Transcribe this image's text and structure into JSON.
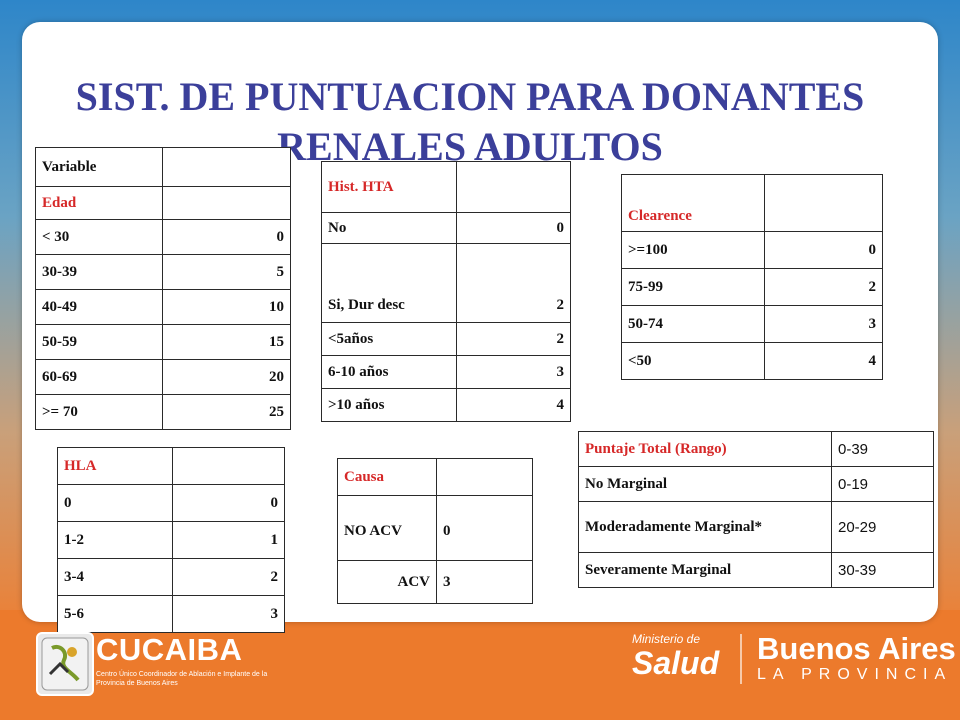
{
  "title": {
    "line1": "SIST. DE PUNTUACION PARA DONANTES",
    "line2": "RENALES ADULTOS"
  },
  "edad_table": {
    "header": "Variable",
    "subheader": "Edad",
    "rows": [
      {
        "label": "< 30",
        "value": "0"
      },
      {
        "label": "30-39",
        "value": "5"
      },
      {
        "label": "40-49",
        "value": "10"
      },
      {
        "label": "50-59",
        "value": "15"
      },
      {
        "label": "60-69",
        "value": "20"
      },
      {
        "label": ">= 70",
        "value": "25"
      }
    ]
  },
  "hta_table": {
    "header": "Hist. HTA",
    "rows": [
      {
        "label": "No",
        "value": "0"
      },
      {
        "label": "Si, Dur desc",
        "value": "2"
      },
      {
        "label": "<5años",
        "value": "2"
      },
      {
        "label": "6-10 años",
        "value": "3"
      },
      {
        "label": ">10 años",
        "value": "4"
      }
    ]
  },
  "clearence_table": {
    "header": "Clearence",
    "rows": [
      {
        "label": ">=100",
        "value": "0"
      },
      {
        "label": "75-99",
        "value": "2"
      },
      {
        "label": "50-74",
        "value": "3"
      },
      {
        "label": "<50",
        "value": "4"
      }
    ]
  },
  "hla_table": {
    "header": "HLA",
    "rows": [
      {
        "label": "0",
        "value": "0"
      },
      {
        "label": "1-2",
        "value": "1"
      },
      {
        "label": "3-4",
        "value": "2"
      },
      {
        "label": "5-6",
        "value": "3"
      }
    ]
  },
  "causa_table": {
    "header": "Causa",
    "rows": [
      {
        "label": "NO ACV",
        "value": "0"
      },
      {
        "label": "ACV",
        "value": "3"
      }
    ]
  },
  "puntaje_table": {
    "header_label": "Puntaje Total (Rango)",
    "header_value": "0-39",
    "rows": [
      {
        "label": "No Marginal",
        "value": "0-19"
      },
      {
        "label": "Moderadamente Marginal*",
        "value": "20-29"
      },
      {
        "label": "Severamente Marginal",
        "value": "30-39"
      }
    ]
  },
  "footer": {
    "cucaiba_name": "CUCAIBA",
    "cucaiba_sub": "Centro Único Coordinador de Ablación e Implante de la Provincia de Buenos Aires",
    "ministerio_small": "Ministerio de",
    "ministerio_big": "Salud",
    "baires_big": "Buenos Aires",
    "baires_small": "LA PROVINCIA"
  },
  "colors": {
    "title": "#3b3f9a",
    "accent_red": "#d62828",
    "footer_orange": "#ec7a2c",
    "top_blue": "#2e86c9"
  }
}
